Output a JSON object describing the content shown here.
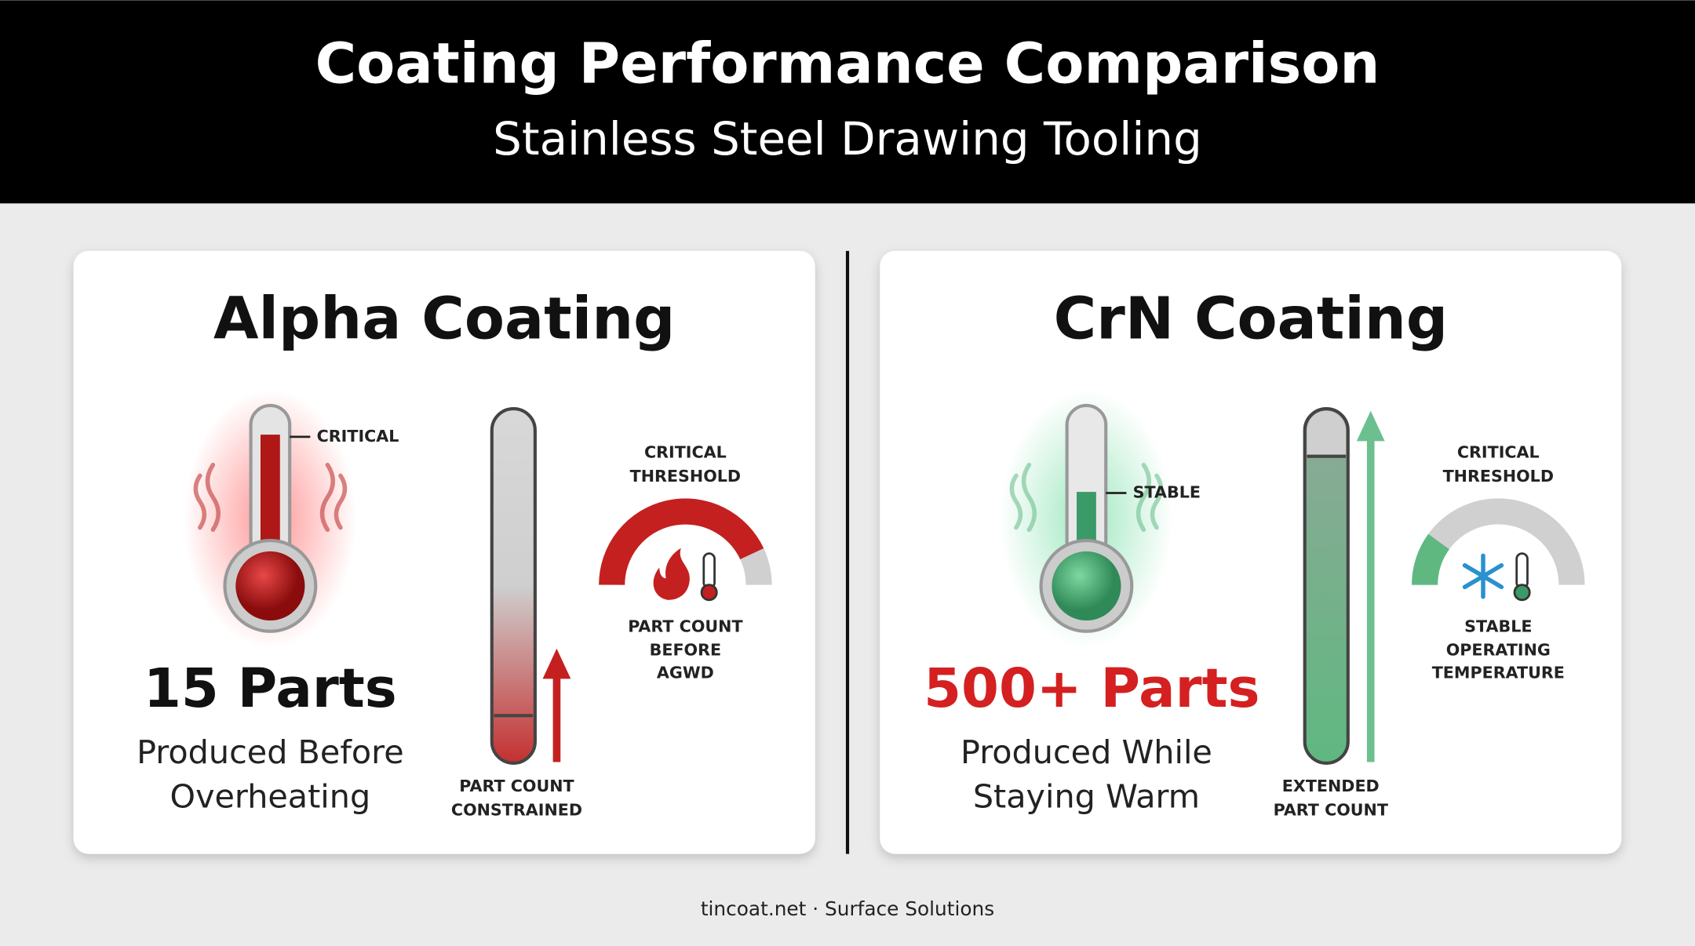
{
  "header": {
    "title": "Coating Performance Comparison",
    "subtitle": "Stainless Steel Drawing Tooling"
  },
  "panels": [
    {
      "title": "Alpha Coating",
      "thermometer_label": "CRITICAL",
      "gauge_title": [
        "CRITICAL",
        "THRESHOLD"
      ],
      "gauge_caption": [
        "PART COUNT",
        "BEFORE",
        "AGWD"
      ],
      "headline": "15 Parts",
      "caption": [
        "Produced Before",
        "Overheating"
      ],
      "bar_caption": [
        "PART COUNT",
        "CONSTRAINED"
      ]
    },
    {
      "title": "CrN Coating",
      "thermometer_label": "STABLE",
      "gauge_title": [
        "CRITICAL",
        "THRESHOLD"
      ],
      "gauge_caption": [
        "STABLE",
        "OPERATING",
        "TEMPERATURE"
      ],
      "headline": "500+ Parts",
      "caption": [
        "Produced While",
        "Staying Warm"
      ],
      "bar_caption": [
        "EXTENDED",
        "PART COUNT"
      ]
    }
  ],
  "footer": "tincoat.net · Surface Solutions"
}
